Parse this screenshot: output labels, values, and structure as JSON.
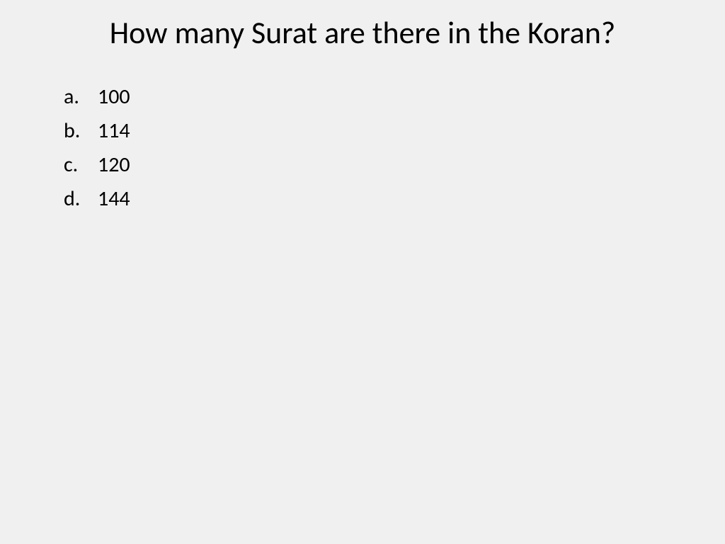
{
  "question": {
    "title": "How many Surat are there in the Koran?",
    "title_fontsize": 44,
    "options": [
      {
        "letter": "a.",
        "value": "100"
      },
      {
        "letter": "b.",
        "value": "114"
      },
      {
        "letter": "c.",
        "value": "120"
      },
      {
        "letter": "d.",
        "value": "144"
      }
    ],
    "option_fontsize": 30
  },
  "colors": {
    "background": "#f0f0f0",
    "text": "#000000"
  }
}
